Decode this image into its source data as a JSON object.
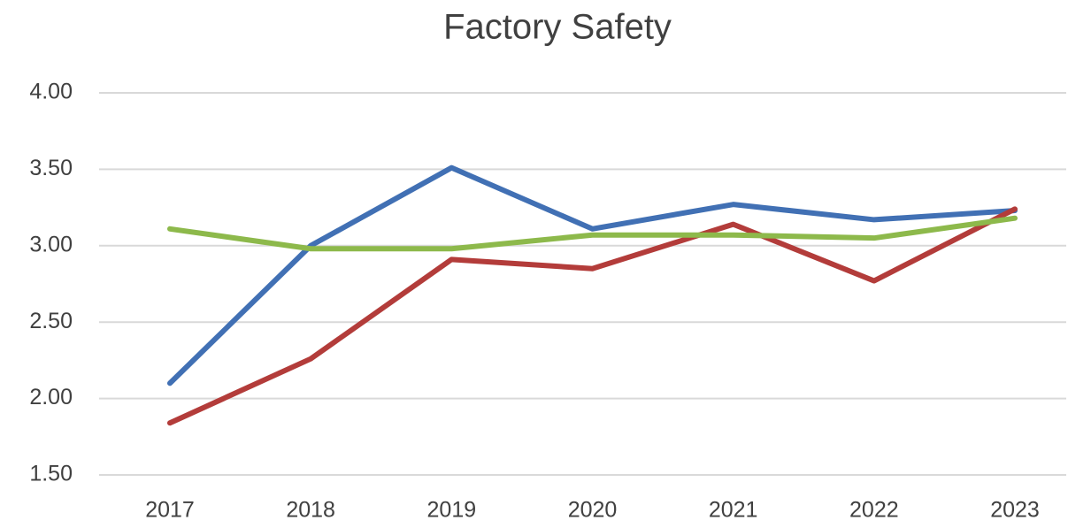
{
  "chart_data": {
    "type": "line",
    "title": "Factory Safety",
    "categories": [
      "2017",
      "2018",
      "2019",
      "2020",
      "2021",
      "2022",
      "2023"
    ],
    "series": [
      {
        "color": "#4170b4",
        "values": [
          2.1,
          3.0,
          3.51,
          3.11,
          3.27,
          3.17,
          3.23
        ]
      },
      {
        "color": "#b33c3a",
        "values": [
          1.84,
          2.26,
          2.91,
          2.85,
          3.14,
          2.77,
          3.24
        ]
      },
      {
        "color": "#8db94b",
        "values": [
          3.11,
          2.98,
          2.98,
          3.07,
          3.07,
          3.05,
          3.18
        ]
      }
    ],
    "ylim": [
      1.5,
      4
    ],
    "yticks": [
      {
        "value": 1.5,
        "label": "1.50"
      },
      {
        "value": 2,
        "label": "2.00"
      },
      {
        "value": 2.5,
        "label": "2.50"
      },
      {
        "value": 3,
        "label": "3.00"
      },
      {
        "value": 3.5,
        "label": "3.50"
      },
      {
        "value": 4,
        "label": "4.00"
      }
    ],
    "grid": true
  }
}
